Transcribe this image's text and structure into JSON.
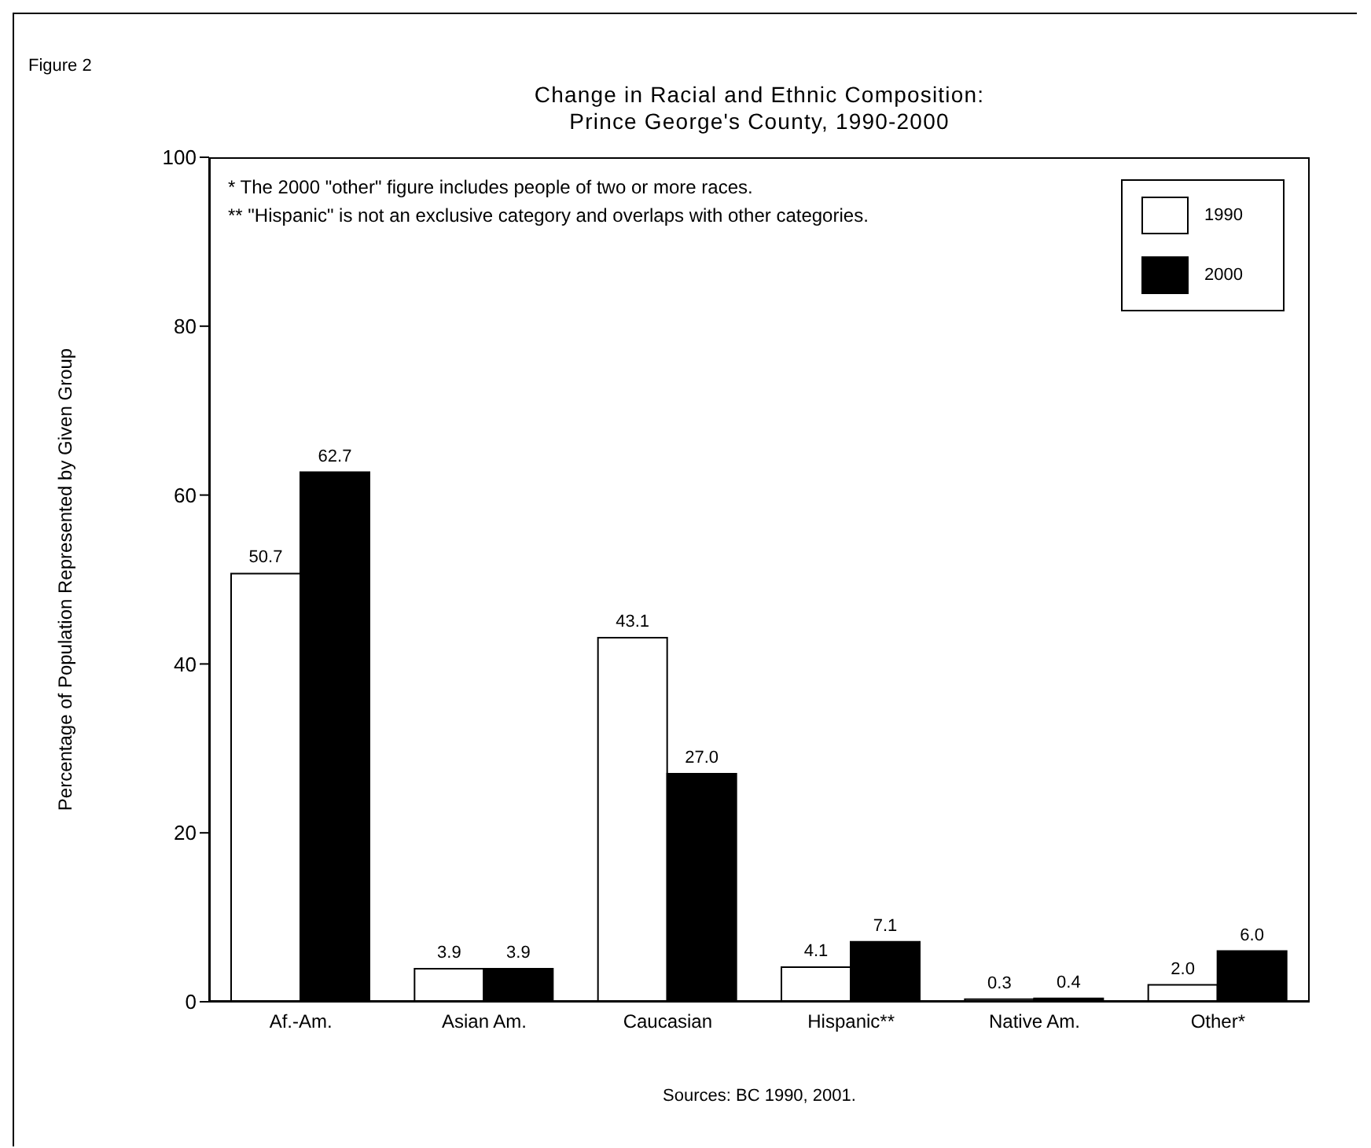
{
  "chart_data": {
    "type": "bar",
    "title": "Change in Racial and Ethnic Composition:\nPrince George's County, 1990-2000",
    "ylabel": "Percentage of Population Represented by Given Group",
    "categories": [
      "Af.-Am.",
      "Asian Am.",
      "Caucasian",
      "Hispanic**",
      "Native Am.",
      "Other*"
    ],
    "series": [
      {
        "name": "1990",
        "color": "#ffffff",
        "values": [
          50.7,
          3.9,
          43.1,
          4.1,
          0.3,
          2.0
        ],
        "value_labels": [
          "50.7",
          "3.9",
          "43.1",
          "4.1",
          "0.3",
          "2.0"
        ]
      },
      {
        "name": "2000",
        "color": "#000000",
        "values": [
          62.7,
          3.9,
          27.0,
          7.1,
          0.4,
          6.0
        ],
        "value_labels": [
          "62.7",
          "3.9",
          "27.0",
          "7.1",
          "0.4",
          "6.0"
        ]
      }
    ],
    "ylim": [
      0,
      100
    ],
    "yticks": [
      0,
      20,
      40,
      60,
      80,
      100
    ],
    "grid": false,
    "legend": "top right",
    "annotations": [
      "Figure 2",
      "* The 2000 \"other\" figure includes people of two or more races.",
      "** \"Hispanic\" is not an exclusive category and overlaps with other categories.",
      "Sources: BC 1990, 2001."
    ]
  }
}
